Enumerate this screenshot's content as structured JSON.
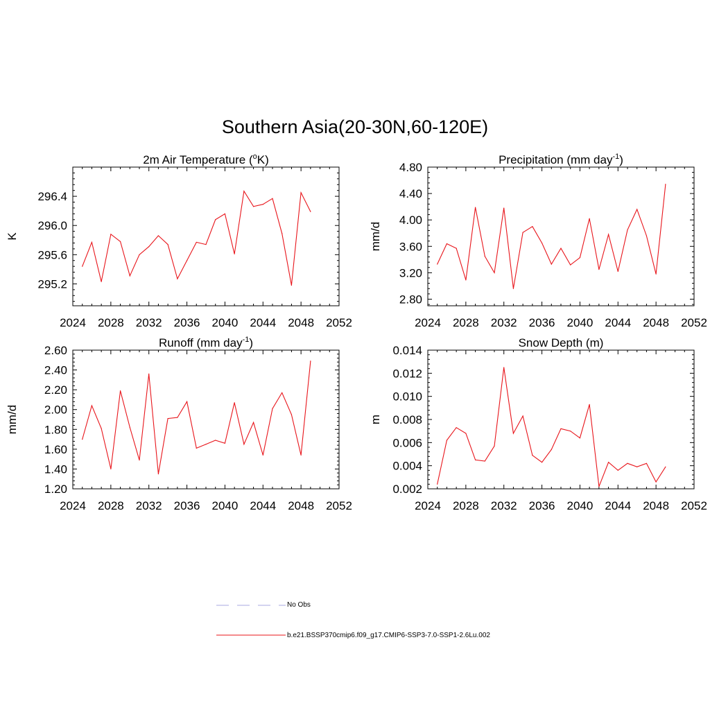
{
  "title": "Southern Asia(20-30N,60-120E)",
  "colors": {
    "model": "#e8141a",
    "obs": "#b9b9e6",
    "axis": "#000000"
  },
  "legend": [
    {
      "label": "No Obs",
      "style": "dashed",
      "color": "#b9b9e6"
    },
    {
      "label": "b.e21.BSSP370cmip6.f09_g17.CMIP6-SSP3-7.0-SSP1-2.6Lu.002",
      "style": "solid",
      "color": "#e8141a"
    }
  ],
  "chart_data": [
    {
      "type": "line",
      "title": "2m Air Temperature (",
      "title_sup": "o",
      "title_post": "K)",
      "ylabel": "K",
      "xlim": [
        2024,
        2052
      ],
      "ylim": [
        294.9,
        296.8
      ],
      "xticks": [
        "2024",
        "2028",
        "2032",
        "2036",
        "2040",
        "2044",
        "2048",
        "2052"
      ],
      "yticks": [
        "295.2",
        "295.6",
        "296.0",
        "296.4"
      ],
      "series": [
        {
          "x": [
            2025,
            2026,
            2027,
            2028,
            2029,
            2030,
            2031,
            2032,
            2033,
            2034,
            2035,
            2036,
            2037,
            2038,
            2039,
            2040,
            2041,
            2042,
            2043,
            2044,
            2045,
            2046,
            2047,
            2048,
            2049
          ],
          "y": [
            295.44,
            295.77,
            295.23,
            295.88,
            295.78,
            295.31,
            295.6,
            295.71,
            295.86,
            295.74,
            295.27,
            295.52,
            295.77,
            295.74,
            296.08,
            296.16,
            295.61,
            296.47,
            296.26,
            296.29,
            296.37,
            295.89,
            295.18,
            296.45,
            296.19
          ]
        }
      ]
    },
    {
      "type": "line",
      "title": "Precipitation (mm day",
      "title_sup": "-1",
      "title_post": ")",
      "ylabel": "mm/d",
      "xlim": [
        2024,
        2052
      ],
      "ylim": [
        2.7,
        4.8
      ],
      "xticks": [
        "2024",
        "2028",
        "2032",
        "2036",
        "2040",
        "2044",
        "2048",
        "2052"
      ],
      "yticks": [
        "2.80",
        "3.20",
        "3.60",
        "4.00",
        "4.40",
        "4.80"
      ],
      "series": [
        {
          "x": [
            2025,
            2026,
            2027,
            2028,
            2029,
            2030,
            2031,
            2032,
            2033,
            2034,
            2035,
            2036,
            2037,
            2038,
            2039,
            2040,
            2041,
            2042,
            2043,
            2044,
            2045,
            2046,
            2047,
            2048,
            2049
          ],
          "y": [
            3.33,
            3.64,
            3.57,
            3.09,
            4.19,
            3.45,
            3.2,
            4.18,
            2.96,
            3.81,
            3.9,
            3.65,
            3.33,
            3.57,
            3.32,
            3.43,
            4.02,
            3.25,
            3.78,
            3.22,
            3.85,
            4.16,
            3.76,
            3.18,
            4.54
          ]
        }
      ]
    },
    {
      "type": "line",
      "title": "Runoff (mm day",
      "title_sup": "-1",
      "title_post": ")",
      "ylabel": "mm/d",
      "xlim": [
        2024,
        2052
      ],
      "ylim": [
        1.2,
        2.6
      ],
      "xticks": [
        "2024",
        "2028",
        "2032",
        "2036",
        "2040",
        "2044",
        "2048",
        "2052"
      ],
      "yticks": [
        "1.20",
        "1.40",
        "1.60",
        "1.80",
        "2.00",
        "2.20",
        "2.40",
        "2.60"
      ],
      "series": [
        {
          "x": [
            2025,
            2026,
            2027,
            2028,
            2029,
            2030,
            2031,
            2032,
            2033,
            2034,
            2035,
            2036,
            2037,
            2038,
            2039,
            2040,
            2041,
            2042,
            2043,
            2044,
            2045,
            2046,
            2047,
            2048,
            2049
          ],
          "y": [
            1.7,
            2.04,
            1.81,
            1.4,
            2.19,
            1.82,
            1.49,
            2.36,
            1.35,
            1.91,
            1.92,
            2.08,
            1.61,
            1.65,
            1.69,
            1.66,
            2.07,
            1.65,
            1.87,
            1.54,
            2.01,
            2.17,
            1.95,
            1.54,
            2.49
          ]
        }
      ]
    },
    {
      "type": "line",
      "title": "Snow Depth (m)",
      "title_sup": "",
      "title_post": "",
      "ylabel": "m",
      "xlim": [
        2024,
        2052
      ],
      "ylim": [
        0.002,
        0.014
      ],
      "xticks": [
        "2024",
        "2028",
        "2032",
        "2036",
        "2040",
        "2044",
        "2048",
        "2052"
      ],
      "yticks": [
        "0.002",
        "0.004",
        "0.006",
        "0.008",
        "0.010",
        "0.012",
        "0.014"
      ],
      "series": [
        {
          "x": [
            2025,
            2026,
            2027,
            2028,
            2029,
            2030,
            2031,
            2032,
            2033,
            2034,
            2035,
            2036,
            2037,
            2038,
            2039,
            2040,
            2041,
            2042,
            2043,
            2044,
            2045,
            2046,
            2047,
            2048,
            2049
          ],
          "y": [
            0.0024,
            0.0062,
            0.0073,
            0.0068,
            0.0045,
            0.0044,
            0.0057,
            0.0125,
            0.0068,
            0.0083,
            0.0049,
            0.0043,
            0.0054,
            0.0072,
            0.007,
            0.0064,
            0.0093,
            0.0022,
            0.0043,
            0.0036,
            0.0042,
            0.0039,
            0.0042,
            0.0026,
            0.0039
          ]
        }
      ]
    }
  ]
}
